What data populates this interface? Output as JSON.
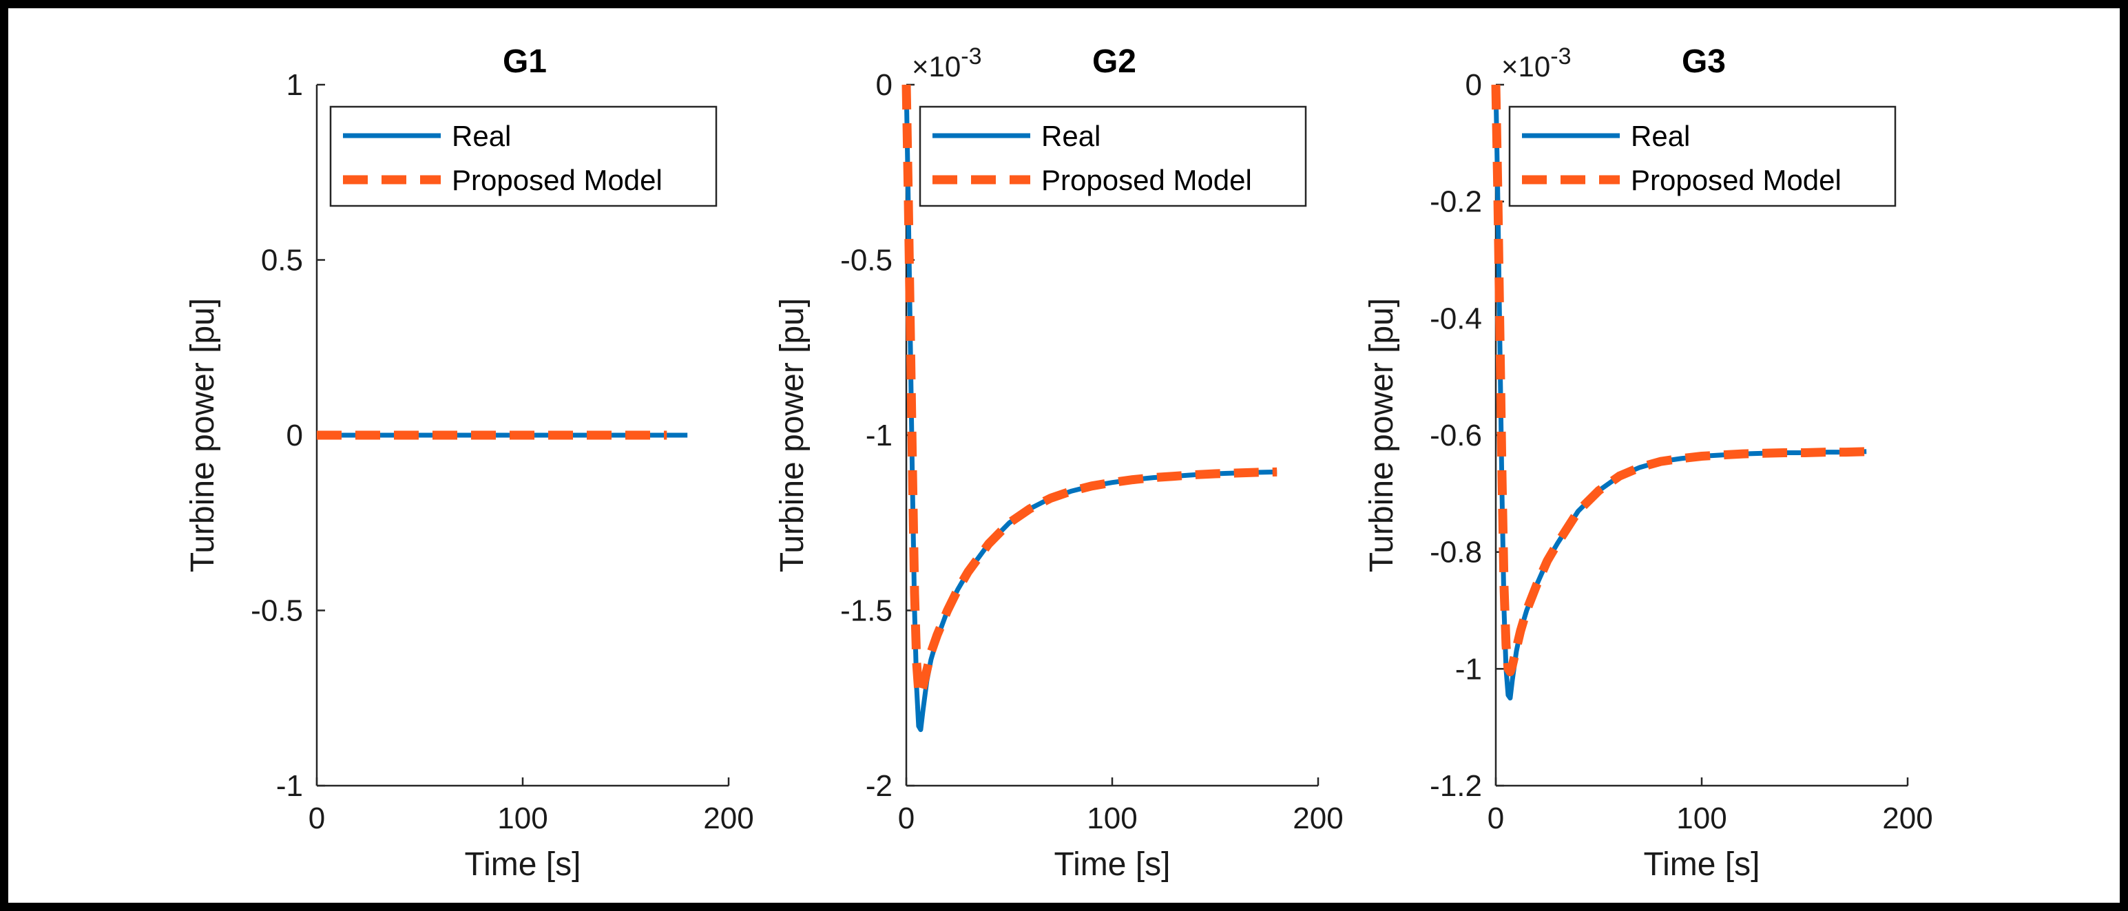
{
  "colors": {
    "real": "#0072BD",
    "model": "#FF5A1A",
    "axis": "#262626"
  },
  "chart_data": [
    {
      "type": "line",
      "title": "G1",
      "xlabel": "Time [s]",
      "ylabel": "Turbine power [pu]",
      "xlim": [
        0,
        200
      ],
      "ylim": [
        -1,
        1
      ],
      "xticks": [
        0,
        100,
        200
      ],
      "yticks": [
        -1,
        -0.5,
        0,
        0.5,
        1
      ],
      "ytick_labels": [
        "-1",
        "-0.5",
        "0",
        "0.5",
        "1"
      ],
      "exponent": "",
      "legend": {
        "location": "top-left",
        "entries": [
          "Real",
          "Proposed Model"
        ]
      },
      "series": [
        {
          "name": "Real",
          "style": "solid",
          "x": [
            0,
            20,
            40,
            60,
            80,
            100,
            120,
            140,
            160,
            180
          ],
          "y": [
            0,
            0,
            0,
            0,
            0,
            0,
            0,
            0,
            0,
            0
          ]
        },
        {
          "name": "Proposed Model",
          "style": "dashed",
          "x": [
            0,
            20,
            40,
            60,
            80,
            100,
            120,
            140,
            160,
            170
          ],
          "y": [
            0,
            0,
            0,
            0,
            0,
            0,
            0,
            0,
            0,
            0
          ]
        }
      ]
    },
    {
      "type": "line",
      "title": "G2",
      "xlabel": "Time [s]",
      "ylabel": "Turbine power [pu]",
      "xlim": [
        0,
        200
      ],
      "ylim": [
        -2,
        0
      ],
      "xticks": [
        0,
        100,
        200
      ],
      "yticks": [
        -2,
        -1.5,
        -1,
        -0.5,
        0
      ],
      "ytick_labels": [
        "-2",
        "-1.5",
        "-1",
        "-0.5",
        "0"
      ],
      "exponent": "×10",
      "exponent_power": "-3",
      "legend": {
        "location": "top-left",
        "entries": [
          "Real",
          "Proposed Model"
        ]
      },
      "series": [
        {
          "name": "Real",
          "style": "solid",
          "x": [
            0,
            1,
            2,
            3,
            4,
            5,
            6,
            7,
            8,
            10,
            12,
            15,
            20,
            25,
            30,
            40,
            50,
            60,
            70,
            80,
            90,
            100,
            110,
            120,
            130,
            140,
            150,
            160,
            170,
            180
          ],
          "y": [
            0,
            -0.35,
            -0.75,
            -1.15,
            -1.5,
            -1.72,
            -1.83,
            -1.84,
            -1.79,
            -1.7,
            -1.64,
            -1.58,
            -1.5,
            -1.44,
            -1.39,
            -1.31,
            -1.25,
            -1.21,
            -1.18,
            -1.16,
            -1.145,
            -1.135,
            -1.127,
            -1.121,
            -1.117,
            -1.113,
            -1.11,
            -1.108,
            -1.106,
            -1.105
          ]
        },
        {
          "name": "Proposed Model",
          "style": "dashed",
          "x": [
            0,
            1,
            2,
            3,
            4,
            5,
            6,
            7,
            8,
            10,
            12,
            15,
            20,
            25,
            30,
            40,
            50,
            60,
            70,
            80,
            90,
            100,
            110,
            120,
            130,
            140,
            150,
            160,
            170,
            180
          ],
          "y": [
            0,
            -0.33,
            -0.72,
            -1.1,
            -1.45,
            -1.65,
            -1.73,
            -1.74,
            -1.72,
            -1.67,
            -1.62,
            -1.57,
            -1.5,
            -1.44,
            -1.39,
            -1.31,
            -1.25,
            -1.21,
            -1.18,
            -1.16,
            -1.145,
            -1.135,
            -1.127,
            -1.121,
            -1.117,
            -1.113,
            -1.11,
            -1.108,
            -1.106,
            -1.105
          ]
        }
      ]
    },
    {
      "type": "line",
      "title": "G3",
      "xlabel": "Time [s]",
      "ylabel": "Turbine power [pu]",
      "xlim": [
        0,
        200
      ],
      "ylim": [
        -1.2,
        0
      ],
      "xticks": [
        0,
        100,
        200
      ],
      "yticks": [
        -1.2,
        -1,
        -0.8,
        -0.6,
        -0.4,
        -0.2,
        0
      ],
      "ytick_labels": [
        "-1.2",
        "-1",
        "-0.8",
        "-0.6",
        "-0.4",
        "-0.2",
        "0"
      ],
      "exponent": "×10",
      "exponent_power": "-3",
      "legend": {
        "location": "top-left",
        "entries": [
          "Real",
          "Proposed Model"
        ]
      },
      "series": [
        {
          "name": "Real",
          "style": "solid",
          "x": [
            0,
            1,
            2,
            3,
            4,
            5,
            6,
            7,
            8,
            10,
            12,
            15,
            20,
            25,
            30,
            40,
            50,
            60,
            70,
            80,
            90,
            100,
            110,
            120,
            130,
            140,
            150,
            160,
            170,
            180
          ],
          "y": [
            0,
            -0.2,
            -0.45,
            -0.7,
            -0.9,
            -1.0,
            -1.045,
            -1.05,
            -1.02,
            -0.97,
            -0.935,
            -0.9,
            -0.855,
            -0.815,
            -0.785,
            -0.73,
            -0.695,
            -0.67,
            -0.655,
            -0.645,
            -0.64,
            -0.636,
            -0.634,
            -0.632,
            -0.631,
            -0.63,
            -0.63,
            -0.629,
            -0.629,
            -0.628
          ]
        },
        {
          "name": "Proposed Model",
          "style": "dashed",
          "x": [
            0,
            1,
            2,
            3,
            4,
            5,
            6,
            7,
            8,
            10,
            12,
            15,
            20,
            25,
            30,
            40,
            50,
            60,
            70,
            80,
            90,
            100,
            110,
            120,
            130,
            140,
            150,
            160,
            170,
            180
          ],
          "y": [
            0,
            -0.19,
            -0.43,
            -0.67,
            -0.86,
            -0.96,
            -1.0,
            -1.005,
            -0.995,
            -0.965,
            -0.935,
            -0.9,
            -0.855,
            -0.815,
            -0.785,
            -0.73,
            -0.695,
            -0.67,
            -0.655,
            -0.645,
            -0.64,
            -0.636,
            -0.634,
            -0.632,
            -0.631,
            -0.63,
            -0.63,
            -0.629,
            -0.629,
            -0.628
          ]
        }
      ]
    }
  ]
}
